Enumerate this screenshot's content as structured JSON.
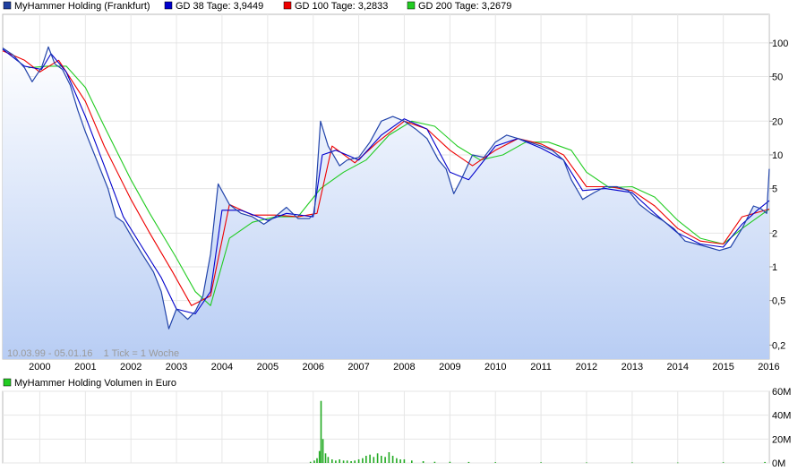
{
  "legend": [
    {
      "label": "MyHammer Holding (Frankfurt)",
      "color": "#1f3f9f"
    },
    {
      "label": "GD 38 Tage: 3,9449",
      "color": "#0000cc"
    },
    {
      "label": "GD 100 Tage: 3,2833",
      "color": "#ee0000"
    },
    {
      "label": "GD 200 Tage: 3,2679",
      "color": "#22cc22"
    }
  ],
  "info_text": "10.03.99 - 05.01.16    1 Tick = 1 Woche",
  "volume_legend": {
    "label": "MyHammer Holding Volumen in Euro",
    "color": "#22cc22"
  },
  "chart_data": [
    {
      "type": "line",
      "y_scale": "log",
      "ylim": [
        0.15,
        180
      ],
      "xlim": [
        "1999-03-10",
        "2016-01-05"
      ],
      "y_ticks": [
        {
          "value": 100,
          "label": "100"
        },
        {
          "value": 50,
          "label": "50"
        },
        {
          "value": 20,
          "label": "20"
        },
        {
          "value": 10,
          "label": "10"
        },
        {
          "value": 5,
          "label": "5"
        },
        {
          "value": 2,
          "label": "2"
        },
        {
          "value": 1,
          "label": "1"
        },
        {
          "value": 0.5,
          "label": "0,5"
        },
        {
          "value": 0.2,
          "label": "0,2"
        }
      ],
      "x_ticks": [
        "2000",
        "2001",
        "2002",
        "2003",
        "2004",
        "2005",
        "2006",
        "2007",
        "2008",
        "2009",
        "2010",
        "2011",
        "2012",
        "2013",
        "2014",
        "2015",
        "2016"
      ],
      "grid": true,
      "series": [
        {
          "name": "MyHammer Holding (Frankfurt)",
          "color": "#2244aa",
          "x": [
            "1999-03-10",
            "1999-06-01",
            "1999-09-01",
            "1999-11-01",
            "2000-01-15",
            "2000-03-10",
            "2000-05-01",
            "2000-07-01",
            "2000-09-01",
            "2000-11-01",
            "2001-01-01",
            "2001-04-01",
            "2001-07-01",
            "2001-09-01",
            "2001-11-01",
            "2002-01-01",
            "2002-04-01",
            "2002-07-01",
            "2002-09-01",
            "2002-11-01",
            "2003-01-01",
            "2003-04-01",
            "2003-06-01",
            "2003-08-01",
            "2003-10-01",
            "2003-12-01",
            "2004-03-01",
            "2004-06-01",
            "2004-09-01",
            "2004-12-01",
            "2005-03-01",
            "2005-06-01",
            "2005-09-01",
            "2005-12-01",
            "2006-01-10",
            "2006-03-01",
            "2006-05-01",
            "2006-08-01",
            "2006-10-01",
            "2007-01-01",
            "2007-04-01",
            "2007-07-01",
            "2007-10-01",
            "2008-01-01",
            "2008-04-01",
            "2008-07-01",
            "2008-10-01",
            "2008-12-01",
            "2009-02-01",
            "2009-04-01",
            "2009-07-01",
            "2009-10-01",
            "2010-01-01",
            "2010-04-01",
            "2010-07-01",
            "2010-10-01",
            "2011-01-01",
            "2011-04-01",
            "2011-07-01",
            "2011-09-01",
            "2011-12-01",
            "2012-03-01",
            "2012-06-01",
            "2012-09-01",
            "2012-12-01",
            "2013-03-01",
            "2013-06-01",
            "2013-09-01",
            "2013-12-01",
            "2014-03-01",
            "2014-06-01",
            "2014-09-01",
            "2014-12-01",
            "2015-03-01",
            "2015-06-01",
            "2015-09-01",
            "2015-11-01",
            "2015-12-15",
            "2016-01-05"
          ],
          "y": [
            90,
            78,
            60,
            45,
            60,
            92,
            65,
            58,
            42,
            25,
            16,
            9,
            5,
            2.8,
            2.5,
            1.9,
            1.3,
            0.9,
            0.6,
            0.28,
            0.42,
            0.34,
            0.4,
            0.55,
            1.3,
            5.5,
            3.6,
            3.0,
            2.8,
            2.4,
            2.8,
            3.4,
            2.7,
            2.7,
            3.0,
            20,
            12,
            8,
            9,
            9.5,
            13,
            20,
            22,
            20,
            17,
            14,
            9,
            7.5,
            4.5,
            6,
            10,
            9.5,
            13,
            15,
            14,
            13,
            12,
            11,
            9,
            6,
            4,
            4.6,
            5.2,
            5.2,
            4.8,
            3.6,
            3.0,
            2.6,
            2.2,
            1.7,
            1.6,
            1.5,
            1.4,
            1.5,
            2.2,
            3.5,
            3.3,
            3.0,
            7.5
          ]
        },
        {
          "name": "GD 38 Tage: 3,9449",
          "color": "#0000cc",
          "x": [
            "1999-03-10",
            "1999-09-01",
            "2000-01-15",
            "2000-04-01",
            "2000-08-01",
            "2001-01-01",
            "2001-06-01",
            "2001-11-01",
            "2002-04-01",
            "2002-09-01",
            "2003-01-01",
            "2003-06-01",
            "2003-10-01",
            "2004-01-01",
            "2004-06-01",
            "2005-01-01",
            "2005-06-01",
            "2006-01-01",
            "2006-03-15",
            "2006-07-01",
            "2007-01-01",
            "2007-07-01",
            "2008-01-01",
            "2008-07-01",
            "2009-01-01",
            "2009-06-01",
            "2010-01-01",
            "2010-07-01",
            "2011-01-01",
            "2011-07-01",
            "2011-12-01",
            "2012-06-01",
            "2013-01-01",
            "2013-07-01",
            "2014-01-01",
            "2014-07-01",
            "2015-01-01",
            "2015-06-01",
            "2015-10-01",
            "2016-01-05"
          ],
          "y": [
            88,
            62,
            58,
            80,
            55,
            22,
            8,
            2.8,
            1.5,
            0.8,
            0.42,
            0.38,
            0.6,
            3.2,
            3.2,
            2.6,
            3.0,
            2.8,
            10,
            11,
            9,
            15,
            21,
            17,
            7,
            6,
            12,
            14,
            11.5,
            9,
            4.8,
            5,
            4.6,
            3.0,
            2.0,
            1.6,
            1.5,
            2.4,
            3.2,
            3.9
          ]
        },
        {
          "name": "GD 100 Tage: 3,2833",
          "color": "#ee0000",
          "x": [
            "1999-03-10",
            "1999-09-01",
            "2000-01-01",
            "2000-06-01",
            "2001-01-01",
            "2001-06-01",
            "2002-01-01",
            "2002-06-01",
            "2002-12-01",
            "2003-05-01",
            "2003-10-01",
            "2004-03-01",
            "2004-09-01",
            "2005-03-01",
            "2005-09-01",
            "2006-02-01",
            "2006-06-01",
            "2006-12-01",
            "2007-06-01",
            "2008-01-01",
            "2008-07-01",
            "2009-01-01",
            "2009-07-01",
            "2010-01-01",
            "2010-07-01",
            "2011-01-01",
            "2011-07-01",
            "2012-01-01",
            "2012-07-01",
            "2013-01-01",
            "2013-07-01",
            "2014-01-01",
            "2014-07-01",
            "2015-01-01",
            "2015-06-01",
            "2016-01-05"
          ],
          "y": [
            85,
            70,
            55,
            70,
            30,
            12,
            4,
            2,
            0.9,
            0.45,
            0.55,
            3.6,
            2.9,
            2.9,
            2.8,
            3.0,
            12,
            8.5,
            13,
            20,
            17,
            11,
            8,
            11,
            14,
            12.5,
            10,
            5.2,
            5.2,
            4.8,
            3.5,
            2.2,
            1.7,
            1.6,
            2.8,
            3.28
          ]
        },
        {
          "name": "GD 200 Tage: 3,2679",
          "color": "#22cc22",
          "x": [
            "1999-10-01",
            "2000-03-01",
            "2000-08-01",
            "2001-01-01",
            "2001-06-01",
            "2002-01-01",
            "2002-06-01",
            "2003-01-01",
            "2003-06-01",
            "2003-10-01",
            "2004-03-01",
            "2004-09-01",
            "2005-03-01",
            "2005-09-01",
            "2006-03-01",
            "2006-09-01",
            "2007-03-01",
            "2007-09-01",
            "2008-03-01",
            "2008-09-01",
            "2009-03-01",
            "2009-09-01",
            "2010-03-01",
            "2010-09-01",
            "2011-03-01",
            "2011-09-01",
            "2012-01-01",
            "2012-07-01",
            "2013-01-01",
            "2013-07-01",
            "2014-01-01",
            "2014-07-01",
            "2015-01-01",
            "2015-06-01",
            "2016-01-05"
          ],
          "y": [
            60,
            62,
            62,
            40,
            18,
            6,
            3,
            1.2,
            0.6,
            0.45,
            1.8,
            2.5,
            2.8,
            2.8,
            5,
            7,
            9,
            15,
            20,
            18,
            12,
            9,
            10,
            13,
            13,
            11,
            7,
            5.1,
            5.2,
            4.2,
            2.6,
            1.8,
            1.6,
            2.2,
            3.27
          ]
        }
      ]
    },
    {
      "type": "bar",
      "title": "MyHammer Holding Volumen in Euro",
      "ylim": [
        0,
        60
      ],
      "y_ticks": [
        {
          "value": 60,
          "label": "60M"
        },
        {
          "value": 40,
          "label": "40M"
        },
        {
          "value": 20,
          "label": "20M"
        },
        {
          "value": 0,
          "label": "0M"
        }
      ],
      "series": [
        {
          "name": "MyHammer Holding Volumen in Euro",
          "color": "#22aa22",
          "x": [
            "2005-12-10",
            "2006-01-10",
            "2006-02-01",
            "2006-02-20",
            "2006-03-05",
            "2006-03-20",
            "2006-04-10",
            "2006-05-01",
            "2006-06-01",
            "2006-07-01",
            "2006-08-01",
            "2006-09-01",
            "2006-10-01",
            "2006-11-01",
            "2006-12-01",
            "2007-01-01",
            "2007-02-01",
            "2007-03-01",
            "2007-04-01",
            "2007-05-01",
            "2007-06-01",
            "2007-07-01",
            "2007-08-01",
            "2007-09-01",
            "2007-10-01",
            "2007-11-01",
            "2007-12-01",
            "2008-01-01",
            "2008-03-01",
            "2008-06-01",
            "2008-09-01",
            "2009-01-01",
            "2009-06-01",
            "2010-01-01",
            "2011-01-01",
            "2012-01-01",
            "2013-01-01",
            "2014-01-01",
            "2015-01-01",
            "2015-12-01"
          ],
          "y": [
            1,
            2,
            4,
            10,
            52,
            20,
            8,
            5,
            3,
            2,
            3,
            2,
            2,
            1.5,
            2,
            3,
            4,
            6,
            7,
            5,
            8,
            6,
            5,
            9,
            6,
            4,
            3,
            3,
            2,
            1.5,
            1,
            1,
            0.8,
            0.6,
            0.5,
            0.4,
            0.4,
            0.3,
            0.5,
            0.8
          ]
        }
      ]
    }
  ]
}
